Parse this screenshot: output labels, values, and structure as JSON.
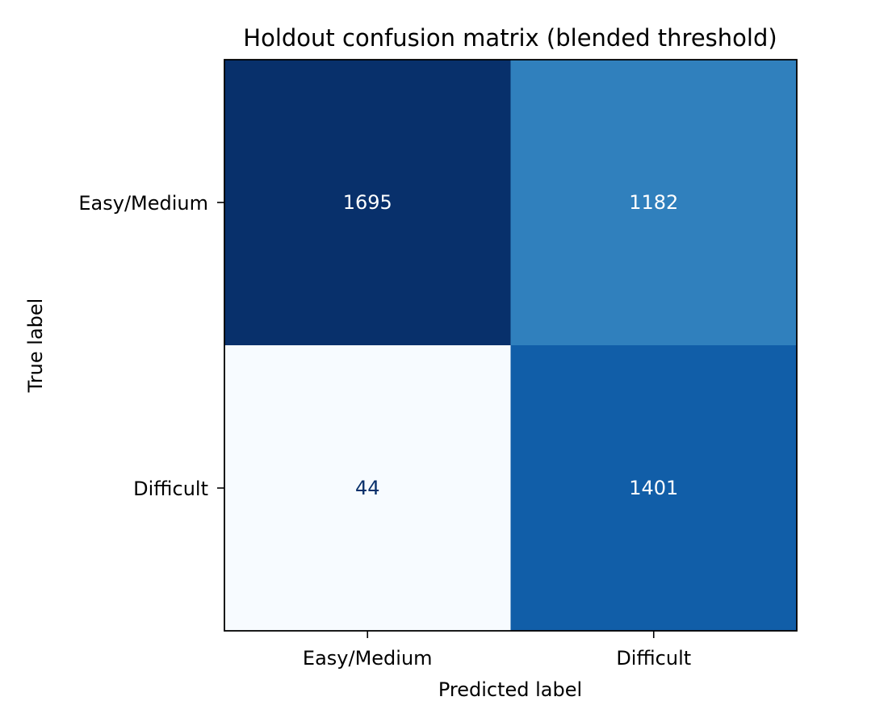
{
  "chart_data": {
    "type": "heatmap",
    "title": "Holdout confusion matrix (blended threshold)",
    "xlabel": "Predicted label",
    "ylabel": "True label",
    "x_categories": [
      "Easy/Medium",
      "Difficult"
    ],
    "y_categories": [
      "Easy/Medium",
      "Difficult"
    ],
    "values": [
      [
        1695,
        1182
      ],
      [
        44,
        1401
      ]
    ],
    "colormap": "Blues",
    "grid": false,
    "legend": "none",
    "colors": {
      "cells": [
        [
          "#08306b",
          "#3080bd"
        ],
        [
          "#f7fbff",
          "#115ea8"
        ]
      ],
      "label_dark": "#08306b",
      "label_light": "#ffffff"
    }
  }
}
